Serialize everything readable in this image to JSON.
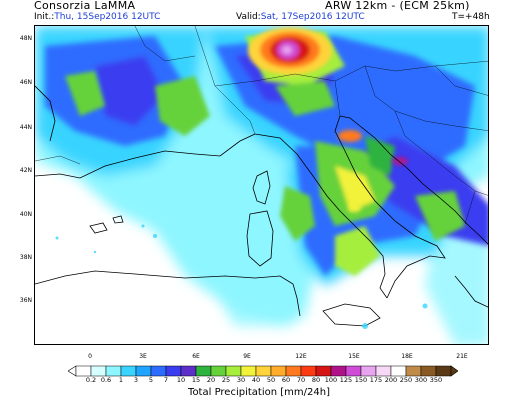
{
  "header": {
    "org": "Consorzia LaMMA",
    "model": "ARW 12km - (ECM 25km)",
    "init_label": "Init.:",
    "init_value": "Thu, 15Sep2016 12UTC",
    "valid_label": "Valid:",
    "valid_value": "Sat, 17Sep2016 12UTC",
    "step": "T=+48h"
  },
  "axes": {
    "lat_labels": [
      "48N",
      "46N",
      "44N",
      "42N",
      "40N",
      "38N",
      "36N"
    ],
    "lon_labels": [
      "0",
      "3E",
      "6E",
      "9E",
      "12E",
      "15E",
      "18E",
      "21E"
    ]
  },
  "colorbar": {
    "title": "Total Precipitation [mm/24h]",
    "labels": [
      "0.2",
      "0.6",
      "1",
      "3",
      "5",
      "7",
      "10",
      "15",
      "20",
      "25",
      "30",
      "40",
      "50",
      "60",
      "70",
      "80",
      "100",
      "125",
      "150",
      "175",
      "200",
      "250",
      "300",
      "350"
    ],
    "colors": [
      "#ffffff",
      "#d6ffff",
      "#8ef6ff",
      "#38d4ff",
      "#1fa5ff",
      "#2d6cff",
      "#3a3cf0",
      "#5b2fc8",
      "#2fb33f",
      "#66d23a",
      "#a6ee3c",
      "#f2f23a",
      "#ffd43a",
      "#ffac2d",
      "#ff7a1e",
      "#ff3b14",
      "#d61414",
      "#b0128a",
      "#d04cd6",
      "#e8a4ee",
      "#f7d9f7",
      "#ffffff",
      "#c08a48",
      "#8a5a24",
      "#5a3a14"
    ]
  },
  "colors": {
    "text_blue": "#1f3fd6",
    "coastline": "#000000",
    "land_base": "#ffffff",
    "sea_light_precip": "#8ef6ff"
  }
}
